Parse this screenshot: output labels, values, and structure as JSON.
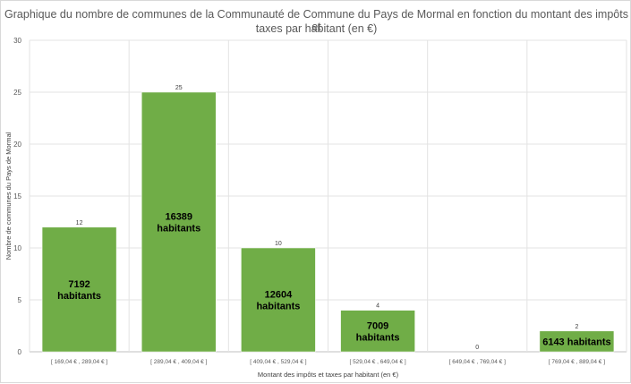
{
  "chart_data": {
    "type": "bar",
    "title": "Graphique du nombre de communes de la Communauté de Commune du Pays de Mormal en fonction du montant des impôts et taxes par habitant (en €)",
    "title_lines": [
      "Graphique du nombre de communes de la Communauté de Commune du Pays de Mormal en fonction du montant des impôts et",
      "taxes par habitant (en €)"
    ],
    "xlabel": "Montant des impôts et taxes par habitant (en €)",
    "ylabel": "Nombre de communes du Pays de Mormal",
    "ylim": [
      0,
      30
    ],
    "yticks": [
      0,
      5,
      10,
      15,
      20,
      25,
      30
    ],
    "grid": true,
    "categories": [
      "[ 169,04 € ,   289,04 € ]",
      "[ 289,04 € ,   409,04 € ]",
      "[ 409,04 € ,   529,04 € ]",
      "[ 529,04 € ,   649,04 € ]",
      "[ 649,04 € ,   769,04 € ]",
      "[ 769,04 € ,   889,04 € ]"
    ],
    "values": [
      12,
      25,
      10,
      4,
      0,
      2
    ],
    "inner_labels": [
      [
        "7192",
        "habitants"
      ],
      [
        "16389",
        "habitants"
      ],
      [
        "12604",
        "habitants"
      ],
      [
        "7009",
        "habitants"
      ],
      [],
      [
        "6143 habitants"
      ]
    ],
    "bar_color": "#70ad47"
  }
}
